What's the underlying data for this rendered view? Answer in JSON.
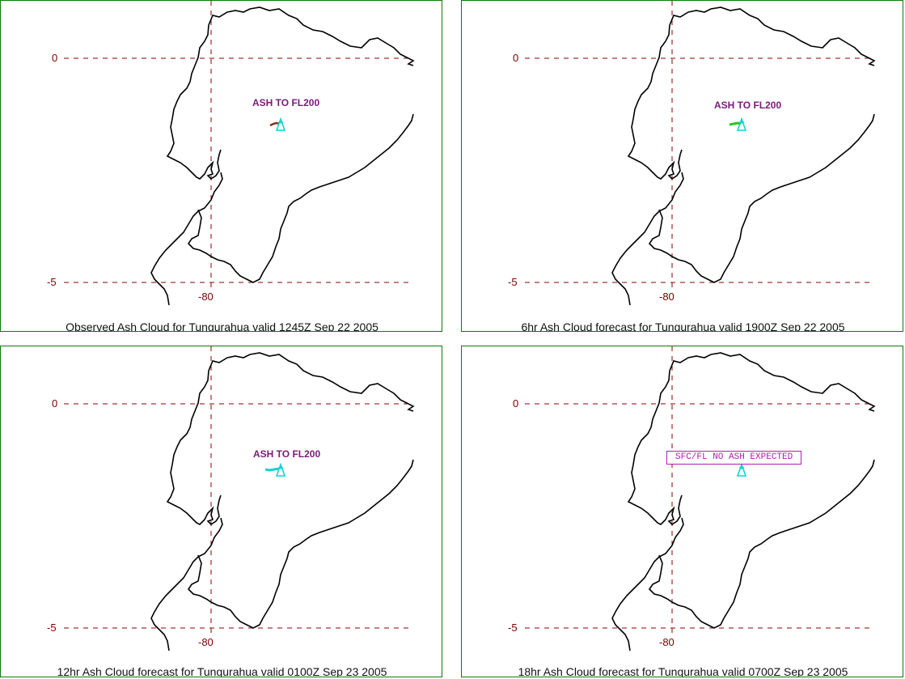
{
  "grid": {
    "lat_labels": [
      "0",
      "-5"
    ],
    "lon_label": "-80"
  },
  "volcano": "Tungurahua",
  "panels": [
    {
      "caption": "Observed Ash Cloud for Tungurahua valid 1245Z Sep 22 2005",
      "label": "ASH TO FL200",
      "label_style": "text",
      "ash_color": "#8b2e1a"
    },
    {
      "caption": "6hr Ash Cloud forecast for Tungurahua valid 1900Z Sep 22 2005",
      "label": "ASH TO FL200",
      "label_style": "text",
      "ash_color": "#22cc22"
    },
    {
      "caption": "12hr Ash Cloud forecast for Tungurahua valid 0100Z Sep 23 2005",
      "label": "ASH TO FL200",
      "label_style": "text",
      "ash_color": "#11d4d4"
    },
    {
      "caption": "18hr Ash Cloud forecast for Tungurahua valid 0700Z Sep 23 2005",
      "label": "SFC/FL NO ASH EXPECTED",
      "label_style": "boxed",
      "ash_color": null
    }
  ],
  "colors": {
    "border": "#0b7a0b",
    "gridline": "#8b0000",
    "coast": "#000000",
    "volcano_symbol": "#11d4d4",
    "ash_label": "#7b1a7b",
    "no_ash_box": "#b31bb3"
  }
}
